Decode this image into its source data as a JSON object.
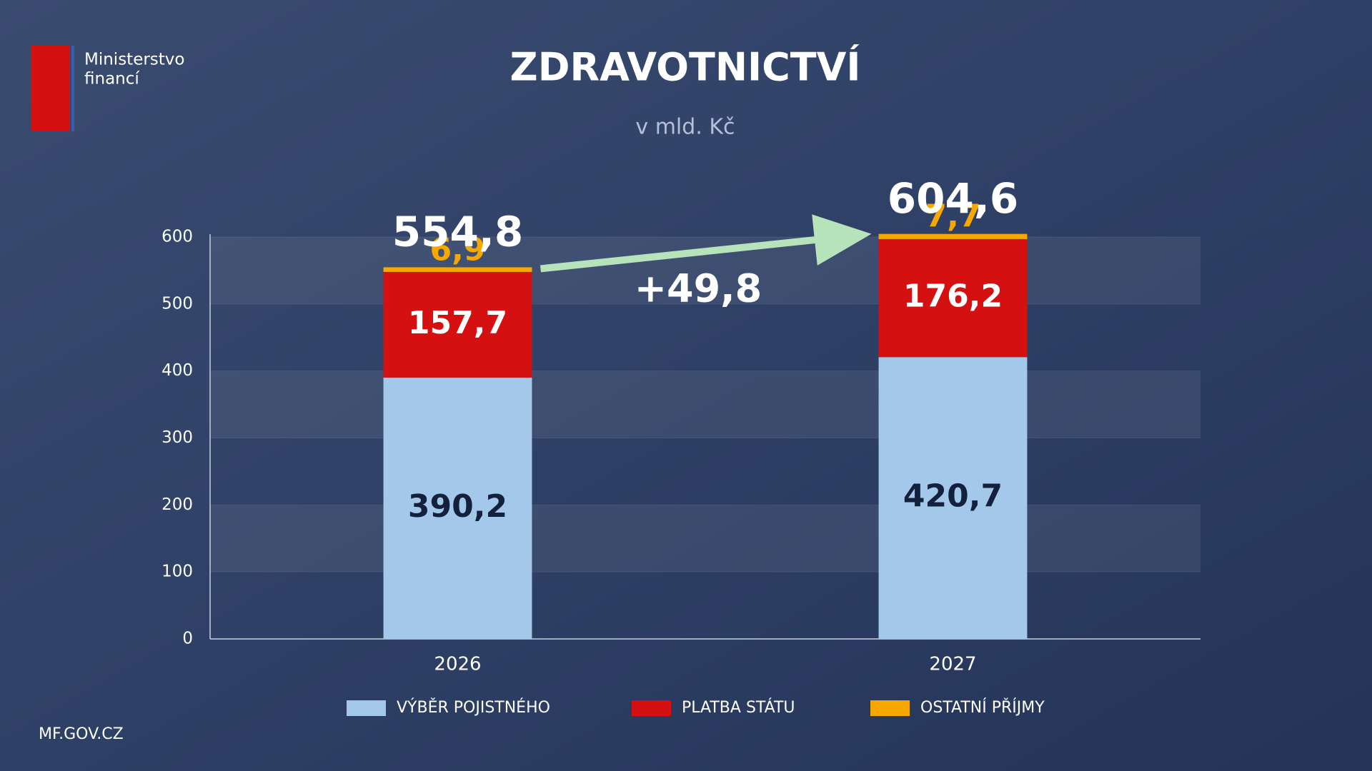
{
  "brand": {
    "name_line1": "Ministerstvo",
    "name_line2": "financí",
    "footer": "MF.GOV.CZ"
  },
  "chart_data": {
    "type": "stacked-bar",
    "title": "ZDRAVOTNICTVÍ",
    "subtitle": "v mld. Kč",
    "categories": [
      "2026",
      "2027"
    ],
    "series": [
      {
        "name": "VÝBĚR POJISTNÉHO",
        "color": "#a3c8ea",
        "label_color": "#14213d",
        "values": [
          390.2,
          420.7
        ],
        "value_labels": [
          "390,2",
          "420,7"
        ]
      },
      {
        "name": "PLATBA STÁTU",
        "color": "#d51010",
        "label_color": "#ffffff",
        "values": [
          157.7,
          176.2
        ],
        "value_labels": [
          "157,7",
          "176,2"
        ]
      },
      {
        "name": "OSTATNÍ PŘÍJMY",
        "color": "#f6a800",
        "label_color": "#f6a800",
        "values": [
          6.9,
          7.7
        ],
        "value_labels": [
          "6,9",
          "7,7"
        ]
      }
    ],
    "totals": {
      "values": [
        554.8,
        604.6
      ],
      "value_labels": [
        "554,8",
        "604,6"
      ]
    },
    "change_label": "+49,8",
    "ylim": [
      0,
      600
    ],
    "yticks": [
      0,
      100,
      200,
      300,
      400,
      500,
      600
    ],
    "grid": true
  }
}
